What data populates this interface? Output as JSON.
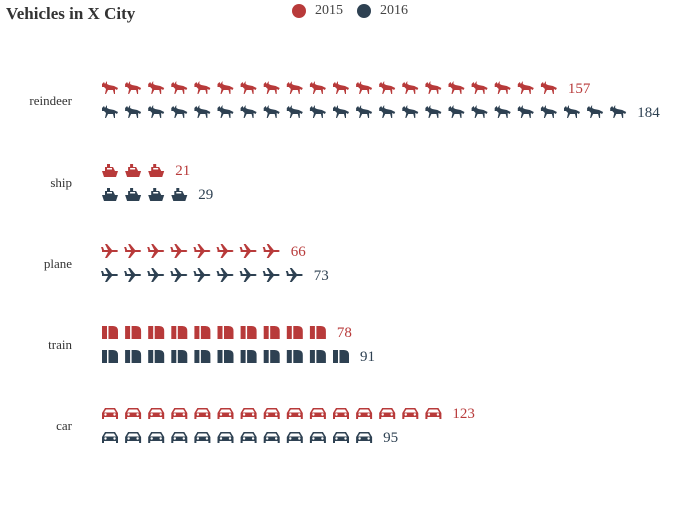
{
  "chart_data": {
    "type": "pictorial-bar",
    "title": "Vehicles in X City",
    "legend_position": "top-center",
    "units_per_icon": 8,
    "categories": [
      "reindeer",
      "ship",
      "plane",
      "train",
      "car"
    ],
    "icons": {
      "reindeer": "reindeer-icon",
      "ship": "ship-icon",
      "plane": "plane-icon",
      "train": "train-icon",
      "car": "car-icon"
    },
    "series": [
      {
        "name": "2015",
        "color": "#b83a3a",
        "values": [
          157,
          21,
          66,
          78,
          123
        ]
      },
      {
        "name": "2016",
        "color": "#2e4152",
        "values": [
          184,
          29,
          73,
          91,
          95
        ]
      }
    ]
  }
}
